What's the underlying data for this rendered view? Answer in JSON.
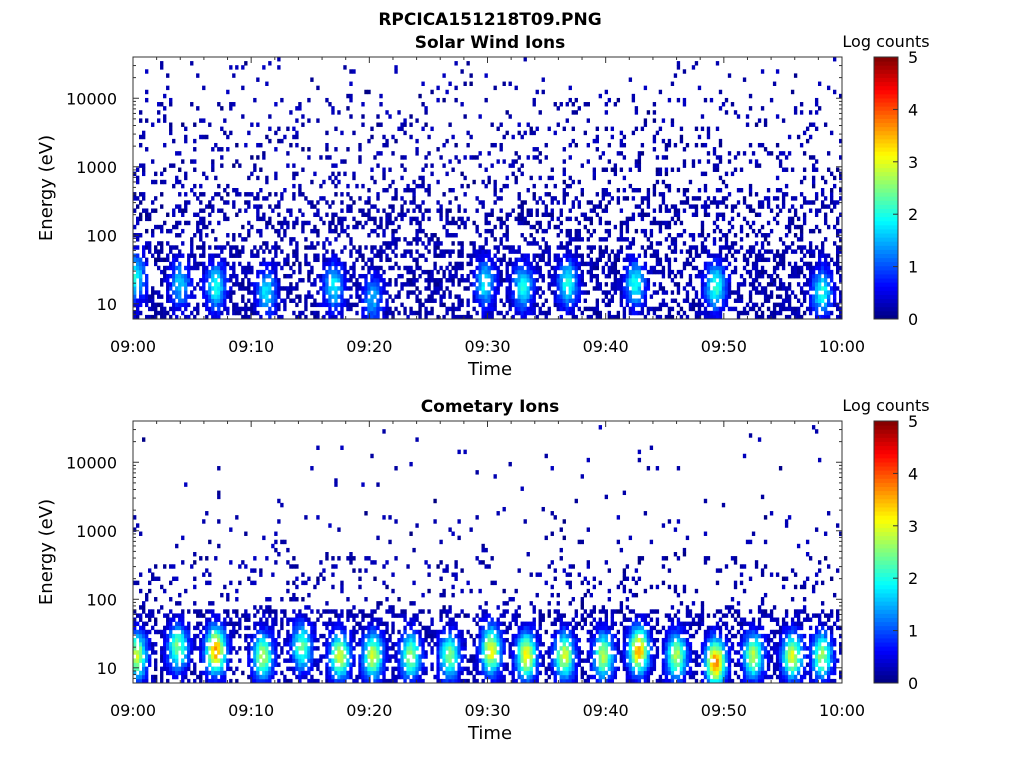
{
  "figure_title": "RPCICA151218T09.PNG",
  "chart_data": [
    {
      "type": "heatmap",
      "title": "Solar Wind Ions",
      "xlabel": "Time",
      "ylabel": "Energy (eV)",
      "x_ticks": [
        "09:00",
        "09:10",
        "09:20",
        "09:30",
        "09:40",
        "09:50",
        "10:00"
      ],
      "y_ticks": [
        "10",
        "100",
        "1000",
        "10000"
      ],
      "y_scale": "log",
      "xlim": [
        "09:00",
        "10:00"
      ],
      "ylim": [
        6,
        40000
      ],
      "colorbar": {
        "label": "Log counts",
        "ticks": [
          "0",
          "1",
          "2",
          "3",
          "4",
          "5"
        ],
        "range": [
          0,
          5
        ],
        "colormap": "jet"
      },
      "hotspots": [
        {
          "time_min": 0.2,
          "energy_ev": 25,
          "log_counts": 1.8
        },
        {
          "time_min": 4.0,
          "energy_ev": 20,
          "log_counts": 1.5
        },
        {
          "time_min": 7.0,
          "energy_ev": 18,
          "log_counts": 1.8
        },
        {
          "time_min": 11.3,
          "energy_ev": 15,
          "log_counts": 1.6
        },
        {
          "time_min": 17.0,
          "energy_ev": 18,
          "log_counts": 1.7
        },
        {
          "time_min": 20.3,
          "energy_ev": 12,
          "log_counts": 1.3
        },
        {
          "time_min": 29.8,
          "energy_ev": 20,
          "log_counts": 1.7
        },
        {
          "time_min": 33.0,
          "energy_ev": 18,
          "log_counts": 1.8
        },
        {
          "time_min": 36.8,
          "energy_ev": 20,
          "log_counts": 1.9
        },
        {
          "time_min": 42.5,
          "energy_ev": 20,
          "log_counts": 1.8
        },
        {
          "time_min": 49.3,
          "energy_ev": 18,
          "log_counts": 2.0
        },
        {
          "time_min": 58.3,
          "energy_ev": 15,
          "log_counts": 1.8
        }
      ]
    },
    {
      "type": "heatmap",
      "title": "Cometary Ions",
      "xlabel": "Time",
      "ylabel": "Energy (eV)",
      "x_ticks": [
        "09:00",
        "09:10",
        "09:20",
        "09:30",
        "09:40",
        "09:50",
        "10:00"
      ],
      "y_ticks": [
        "10",
        "100",
        "1000",
        "10000"
      ],
      "y_scale": "log",
      "xlim": [
        "09:00",
        "10:00"
      ],
      "ylim": [
        6,
        40000
      ],
      "colorbar": {
        "label": "Log counts",
        "ticks": [
          "0",
          "1",
          "2",
          "3",
          "4",
          "5"
        ],
        "range": [
          0,
          5
        ],
        "colormap": "jet"
      },
      "hotspots": [
        {
          "time_min": 0.3,
          "energy_ev": 15,
          "log_counts": 2.8
        },
        {
          "time_min": 3.8,
          "energy_ev": 20,
          "log_counts": 2.3
        },
        {
          "time_min": 7.0,
          "energy_ev": 18,
          "log_counts": 3.5
        },
        {
          "time_min": 11.0,
          "energy_ev": 15,
          "log_counts": 2.6
        },
        {
          "time_min": 14.3,
          "energy_ev": 20,
          "log_counts": 2.2
        },
        {
          "time_min": 17.5,
          "energy_ev": 15,
          "log_counts": 2.8
        },
        {
          "time_min": 20.3,
          "energy_ev": 15,
          "log_counts": 2.7
        },
        {
          "time_min": 23.5,
          "energy_ev": 15,
          "log_counts": 2.5
        },
        {
          "time_min": 26.8,
          "energy_ev": 15,
          "log_counts": 2.4
        },
        {
          "time_min": 30.3,
          "energy_ev": 18,
          "log_counts": 3.0
        },
        {
          "time_min": 33.3,
          "energy_ev": 15,
          "log_counts": 3.0
        },
        {
          "time_min": 36.5,
          "energy_ev": 15,
          "log_counts": 2.8
        },
        {
          "time_min": 39.8,
          "energy_ev": 15,
          "log_counts": 2.6
        },
        {
          "time_min": 42.8,
          "energy_ev": 18,
          "log_counts": 3.4
        },
        {
          "time_min": 46.0,
          "energy_ev": 15,
          "log_counts": 2.6
        },
        {
          "time_min": 49.3,
          "energy_ev": 12,
          "log_counts": 3.6
        },
        {
          "time_min": 52.5,
          "energy_ev": 15,
          "log_counts": 2.6
        },
        {
          "time_min": 55.8,
          "energy_ev": 15,
          "log_counts": 2.8
        },
        {
          "time_min": 58.3,
          "energy_ev": 15,
          "log_counts": 2.5
        }
      ]
    }
  ]
}
